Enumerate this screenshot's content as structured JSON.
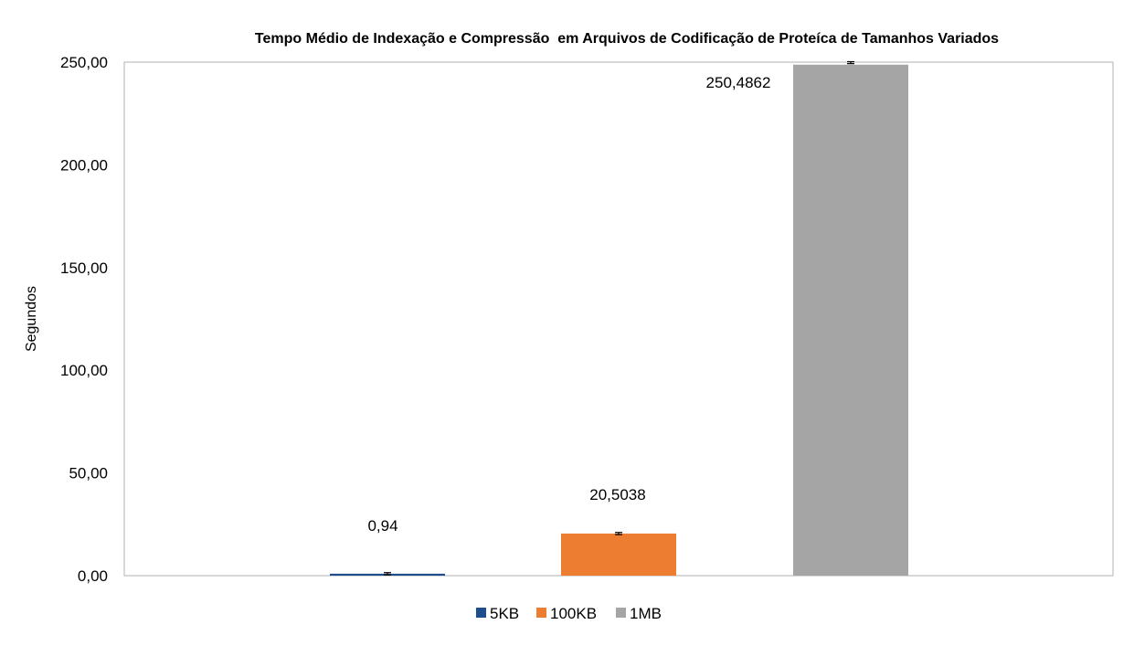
{
  "chart_data": {
    "type": "bar",
    "title": "Tempo Médio de Indexação e Compressão  em Arquivos de Codificação de Proteíca de Tamanhos Variados",
    "ylabel": "Segundos",
    "xlabel": "",
    "ylim": [
      0,
      250
    ],
    "yticks": [
      0,
      50,
      100,
      150,
      200,
      250
    ],
    "ytick_labels": [
      "0,00",
      "50,00",
      "100,00",
      "150,00",
      "200,00",
      "250,00"
    ],
    "grid": false,
    "legend_position": "bottom",
    "series": [
      {
        "name": "5KB",
        "value": 0.94,
        "label": "0,94",
        "error": 0.3,
        "color": "#1f4e8c"
      },
      {
        "name": "100KB",
        "value": 20.5038,
        "label": "20,5038",
        "error": 0.3,
        "color": "#ed7d31"
      },
      {
        "name": "1MB",
        "value": 250.4862,
        "label": "250,4862",
        "error": 1.0,
        "color": "#a5a5a5"
      }
    ]
  }
}
